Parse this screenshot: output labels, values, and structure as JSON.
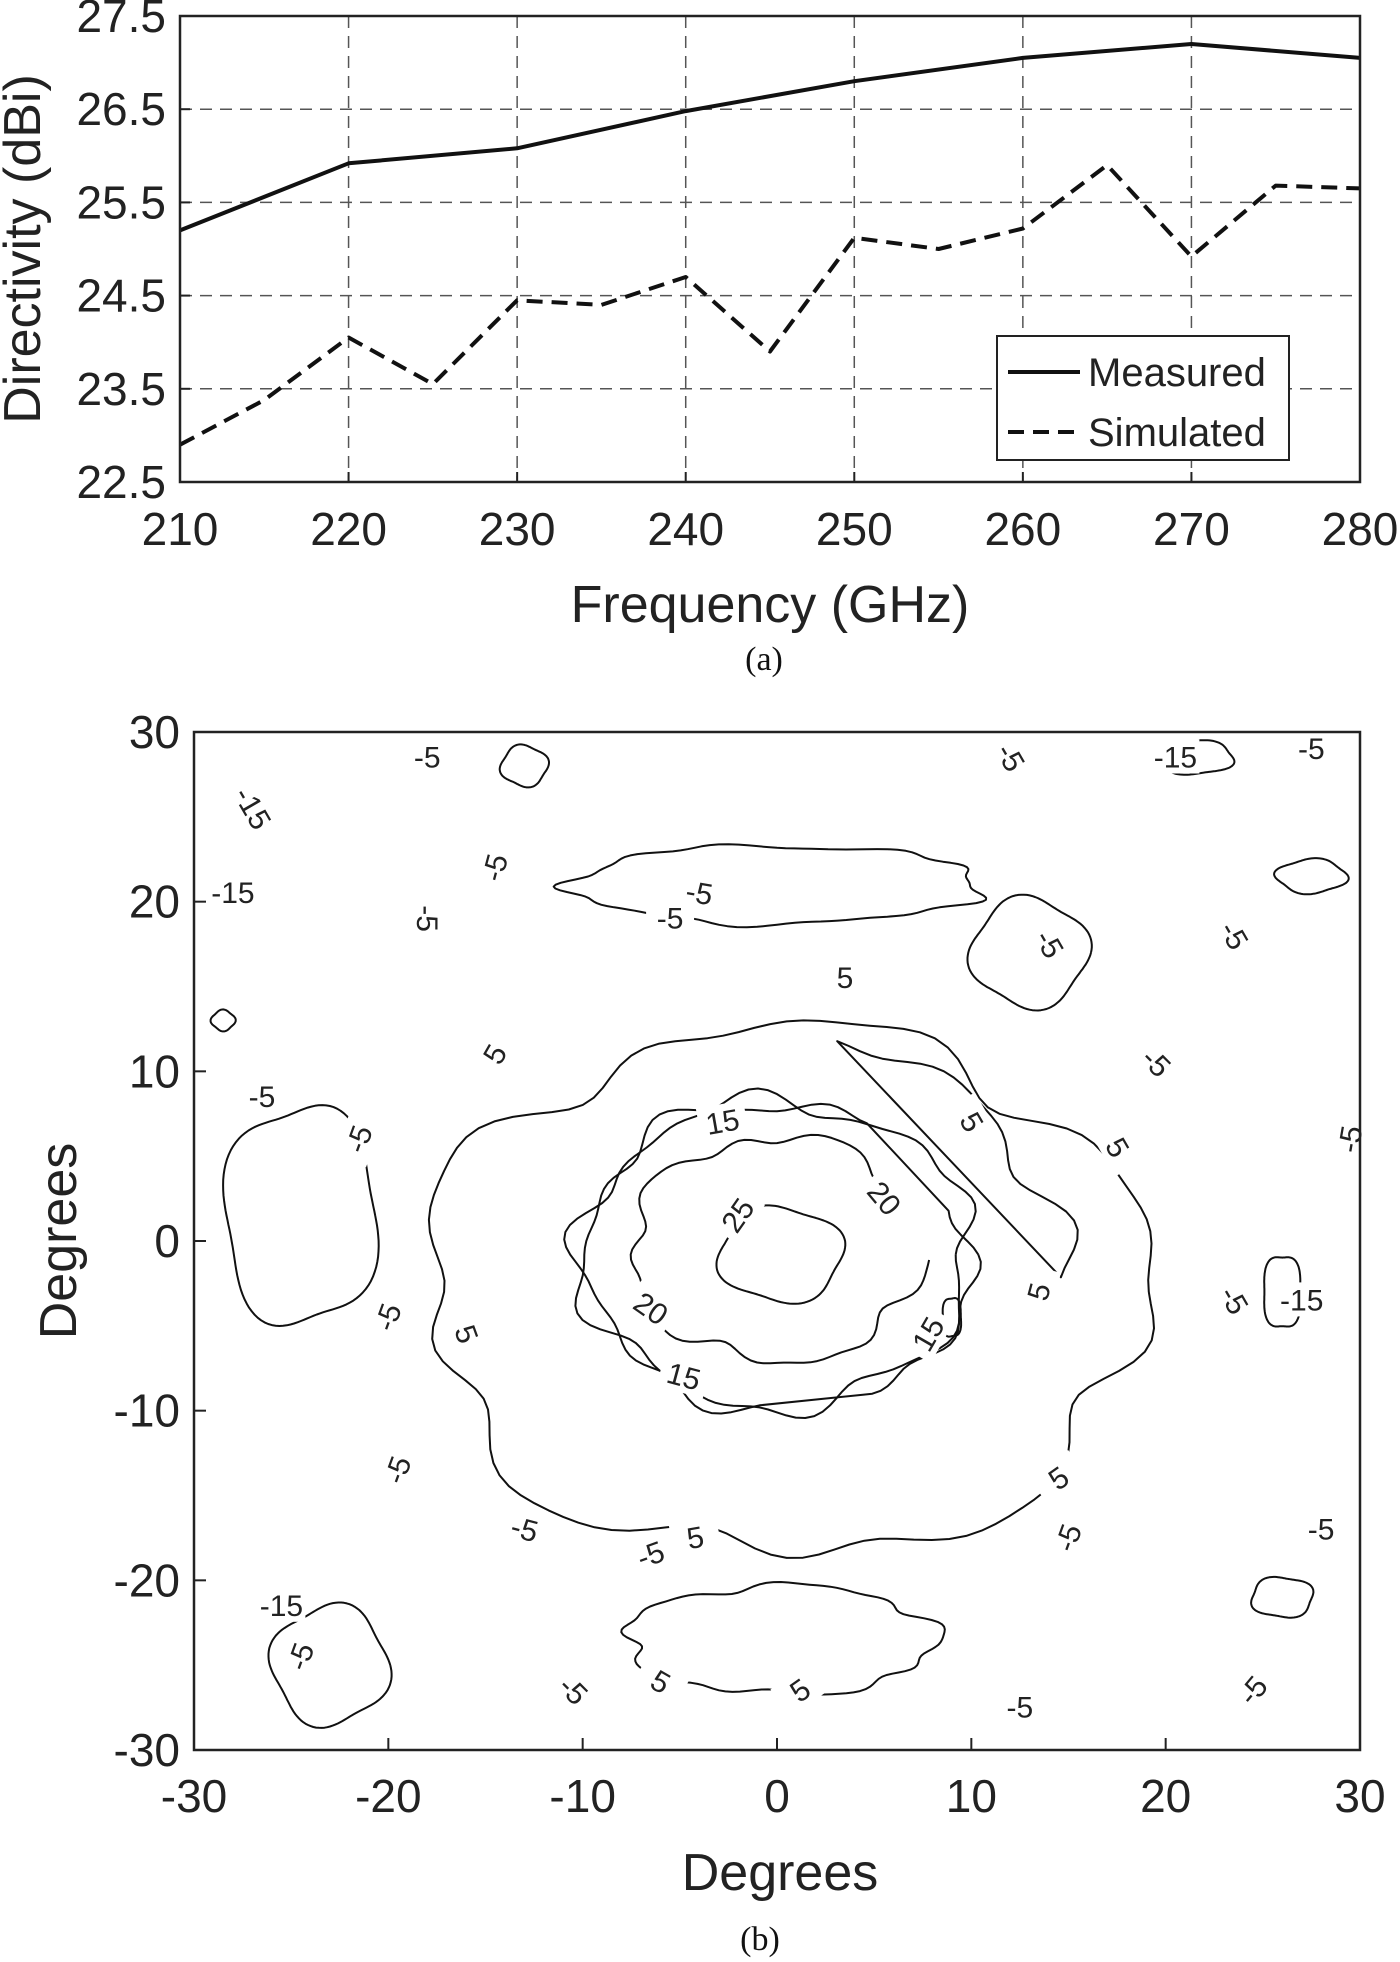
{
  "chart_data": [
    {
      "type": "line",
      "panel_caption": "(a)",
      "xlabel": "Frequency (GHz)",
      "ylabel": "Directivity (dBi)",
      "xlim": [
        210,
        280
      ],
      "ylim": [
        22.5,
        27.5
      ],
      "xticks": [
        "210",
        "220",
        "230",
        "240",
        "250",
        "260",
        "270",
        "280"
      ],
      "yticks": [
        "22.5",
        "23.5",
        "24.5",
        "25.5",
        "26.5",
        "27.5"
      ],
      "grid": true,
      "legend_position": "bottom-right",
      "series": [
        {
          "name": "Measured",
          "style": "solid",
          "x": [
            210,
            220,
            230,
            240,
            250,
            260,
            270,
            280
          ],
          "y": [
            25.2,
            25.92,
            26.08,
            26.48,
            26.8,
            27.05,
            27.2,
            27.05
          ]
        },
        {
          "name": "Simulated",
          "style": "dashed",
          "x": [
            210,
            215,
            220,
            225,
            230,
            235,
            240,
            245,
            250,
            255,
            260,
            265,
            270,
            275,
            280
          ],
          "y": [
            22.9,
            23.38,
            24.05,
            23.55,
            24.45,
            24.4,
            24.7,
            23.9,
            25.12,
            25.0,
            25.22,
            25.9,
            24.92,
            25.68,
            25.65
          ]
        }
      ]
    },
    {
      "type": "contour",
      "panel_caption": "(b)",
      "xlabel": "Degrees",
      "ylabel": "Degrees",
      "xlim": [
        -30,
        30
      ],
      "ylim": [
        -30,
        30
      ],
      "xticks": [
        "-30",
        "-20",
        "-10",
        "0",
        "10",
        "20",
        "30"
      ],
      "yticks": [
        "-30",
        "-20",
        "-10",
        "0",
        "10",
        "20",
        "30"
      ],
      "grid": false,
      "contour_levels": [
        -15,
        -5,
        5,
        15,
        20,
        25
      ],
      "contours": [
        {
          "level": 25,
          "shape": "ellipse",
          "cx": 0.2,
          "cy": -0.8,
          "rx": 3.2,
          "ry": 2.8
        },
        {
          "level": 20,
          "shape": "arc",
          "cx": 0.0,
          "cy": -0.5,
          "rx": 7.5,
          "ry": 6.6,
          "gap_deg": [
            -5,
            40
          ]
        },
        {
          "level": 15,
          "shape": "arc",
          "cx": 0.0,
          "cy": -0.8,
          "rx": 10.0,
          "ry": 9.0,
          "gap_deg": [
            20,
            60
          ]
        },
        {
          "level": 15,
          "shape": "arc",
          "cx": 0.0,
          "cy": -0.8,
          "rx": 10.0,
          "ry": 9.0,
          "gap_deg": [
            265,
            295
          ]
        },
        {
          "level": 5,
          "shape": "ellipse",
          "cx": 0.5,
          "cy": -3.0,
          "rx": 18.5,
          "ry": 15.5
        },
        {
          "level": 5,
          "shape": "arc",
          "cx": 0.5,
          "cy": -0.5,
          "rx": 14.0,
          "ry": 12.0,
          "gap_deg": [
            80,
            350
          ]
        },
        {
          "level": -5,
          "shape": "ellipse",
          "cx": 0.0,
          "cy": 21.0,
          "rx": 10.5,
          "ry": 2.3
        },
        {
          "level": -5,
          "shape": "ellipse",
          "cx": 13.0,
          "cy": 17.0,
          "rx": 3.0,
          "ry": 3.2
        },
        {
          "level": 5,
          "shape": "ellipse",
          "cx": 0.2,
          "cy": -23.5,
          "rx": 8.0,
          "ry": 3.2
        },
        {
          "level": -5,
          "shape": "ellipse",
          "cx": -23.0,
          "cy": -25.0,
          "rx": 3.0,
          "ry": 3.5
        },
        {
          "level": -5,
          "shape": "ellipse",
          "cx": -24.5,
          "cy": 1.5,
          "rx": 4.0,
          "ry": 6.5
        },
        {
          "level": -15,
          "shape": "ellipse",
          "cx": 26.0,
          "cy": -3.0,
          "rx": 1.0,
          "ry": 2.2
        },
        {
          "level": -15,
          "shape": "ellipse",
          "cx": 26.0,
          "cy": -21.0,
          "rx": 1.6,
          "ry": 1.2
        },
        {
          "level": -15,
          "shape": "ellipse",
          "cx": -13.0,
          "cy": 28.0,
          "rx": 1.2,
          "ry": 1.2
        },
        {
          "level": -15,
          "shape": "ellipse",
          "cx": -28.5,
          "cy": 13.0,
          "rx": 0.6,
          "ry": 0.6
        },
        {
          "level": -15,
          "shape": "ellipse",
          "cx": 27.5,
          "cy": 21.5,
          "rx": 1.8,
          "ry": 1.0
        },
        {
          "level": -15,
          "shape": "ellipse",
          "cx": 21.5,
          "cy": 28.5,
          "rx": 2.0,
          "ry": 1.0
        },
        {
          "level": -15,
          "shape": "ellipse",
          "cx": 9.0,
          "cy": -4.5,
          "rx": 0.5,
          "ry": 1.2
        }
      ],
      "contour_labels": [
        {
          "text": "25",
          "x": -2.0,
          "y": 1.5,
          "angle": -55
        },
        {
          "text": "20",
          "x": 5.5,
          "y": 2.5,
          "angle": 50
        },
        {
          "text": "20",
          "x": -6.5,
          "y": -4.0,
          "angle": 35
        },
        {
          "text": "15",
          "x": -2.8,
          "y": 7.0,
          "angle": -10
        },
        {
          "text": "15",
          "x": 7.8,
          "y": -5.5,
          "angle": -60
        },
        {
          "text": "15",
          "x": -4.8,
          "y": -8.0,
          "angle": 15
        },
        {
          "text": "5",
          "x": 3.5,
          "y": 15.5,
          "angle": 0
        },
        {
          "text": "5",
          "x": -14.5,
          "y": 11.0,
          "angle": -60
        },
        {
          "text": "5",
          "x": -16.0,
          "y": -5.5,
          "angle": 70
        },
        {
          "text": "5",
          "x": 10.0,
          "y": 7.0,
          "angle": 60
        },
        {
          "text": "5",
          "x": 17.5,
          "y": 5.5,
          "angle": 60
        },
        {
          "text": "5",
          "x": 13.5,
          "y": -3.0,
          "angle": -75
        },
        {
          "text": "5",
          "x": 14.5,
          "y": -14.0,
          "angle": -35
        },
        {
          "text": "5",
          "x": -4.2,
          "y": -17.5,
          "angle": -10
        },
        {
          "text": "5",
          "x": -6.0,
          "y": -26.0,
          "angle": 30
        },
        {
          "text": "5",
          "x": 1.2,
          "y": -26.5,
          "angle": -35
        },
        {
          "text": "-5",
          "x": -18.0,
          "y": 28.5,
          "angle": 0
        },
        {
          "text": "-5",
          "x": -14.5,
          "y": 22.0,
          "angle": -75
        },
        {
          "text": "-5",
          "x": -18.0,
          "y": 19.0,
          "angle": 90
        },
        {
          "text": "-5",
          "x": -4.0,
          "y": 20.5,
          "angle": 10
        },
        {
          "text": "-5",
          "x": -5.5,
          "y": 19.0,
          "angle": 0
        },
        {
          "text": "-5",
          "x": 12.0,
          "y": 28.5,
          "angle": 60
        },
        {
          "text": "-5",
          "x": 14.0,
          "y": 17.5,
          "angle": 60
        },
        {
          "text": "-5",
          "x": 23.5,
          "y": 18.0,
          "angle": 60
        },
        {
          "text": "-5",
          "x": 27.5,
          "y": 29.0,
          "angle": 0
        },
        {
          "text": "-5",
          "x": -26.5,
          "y": 8.5,
          "angle": 0
        },
        {
          "text": "-5",
          "x": -21.5,
          "y": 6.0,
          "angle": -70
        },
        {
          "text": "-5",
          "x": -20.0,
          "y": -4.5,
          "angle": -70
        },
        {
          "text": "-5",
          "x": 19.5,
          "y": 10.5,
          "angle": 45
        },
        {
          "text": "-5",
          "x": 29.5,
          "y": 6.0,
          "angle": -80
        },
        {
          "text": "-5",
          "x": 23.5,
          "y": -3.5,
          "angle": 60
        },
        {
          "text": "-5",
          "x": -19.5,
          "y": -13.5,
          "angle": -70
        },
        {
          "text": "-5",
          "x": -13.0,
          "y": -17.0,
          "angle": 15
        },
        {
          "text": "-5",
          "x": -6.5,
          "y": -18.5,
          "angle": -20
        },
        {
          "text": "-5",
          "x": 15.0,
          "y": -17.5,
          "angle": -70
        },
        {
          "text": "-5",
          "x": 28.0,
          "y": -17.0,
          "angle": 0
        },
        {
          "text": "-5",
          "x": -24.5,
          "y": -24.5,
          "angle": -70
        },
        {
          "text": "-5",
          "x": -10.5,
          "y": -26.5,
          "angle": 45
        },
        {
          "text": "-5",
          "x": 12.5,
          "y": -27.5,
          "angle": 0
        },
        {
          "text": "-5",
          "x": 24.5,
          "y": -26.5,
          "angle": -50
        },
        {
          "text": "-15",
          "x": -27.0,
          "y": 25.5,
          "angle": 60
        },
        {
          "text": "-15",
          "x": -28.0,
          "y": 20.5,
          "angle": 0
        },
        {
          "text": "-15",
          "x": 20.5,
          "y": 28.5,
          "angle": 0
        },
        {
          "text": "-15",
          "x": 27.0,
          "y": -3.5,
          "angle": 0
        },
        {
          "text": "-15",
          "x": -25.5,
          "y": -21.5,
          "angle": 0
        }
      ]
    }
  ]
}
